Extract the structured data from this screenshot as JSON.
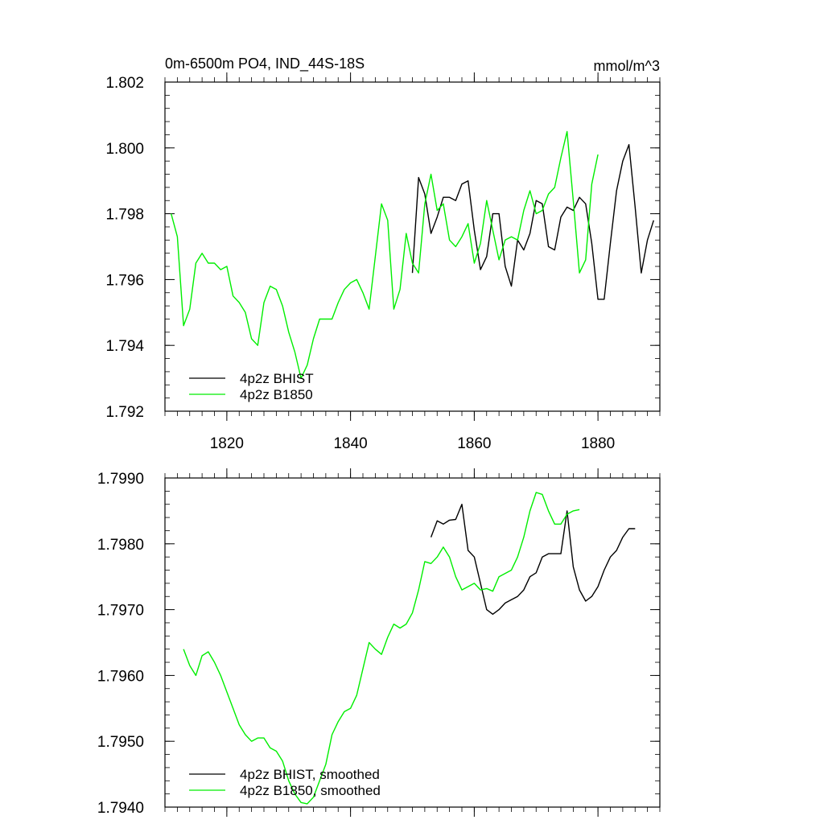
{
  "chart_data": [
    {
      "type": "line",
      "title": "0m-6500m PO4, IND_44S-18S",
      "units": "mmol/m^3",
      "xlim": [
        1810,
        1890
      ],
      "ylim": [
        1.792,
        1.802
      ],
      "xticks": [
        1820,
        1840,
        1860,
        1880
      ],
      "xtick_labels": [
        "1820",
        "1840",
        "1860",
        "1880"
      ],
      "yticks": [
        1.792,
        1.794,
        1.796,
        1.798,
        1.8,
        1.802
      ],
      "ytick_labels": [
        "1.792",
        "1.794",
        "1.796",
        "1.798",
        "1.800",
        "1.802"
      ],
      "legend_position": "bottom-left",
      "series": [
        {
          "name": "4p2z BHIST",
          "color": "#000000",
          "x": [
            1850,
            1851,
            1852,
            1853,
            1854,
            1855,
            1856,
            1857,
            1858,
            1859,
            1860,
            1861,
            1862,
            1863,
            1864,
            1865,
            1866,
            1867,
            1868,
            1869,
            1870,
            1871,
            1872,
            1873,
            1874,
            1875,
            1876,
            1877,
            1878,
            1879,
            1880,
            1881,
            1882,
            1883,
            1884,
            1885,
            1886,
            1887,
            1888,
            1889
          ],
          "values": [
            1.7962,
            1.7991,
            1.7986,
            1.7974,
            1.7979,
            1.7985,
            1.7985,
            1.7984,
            1.7989,
            1.799,
            1.7975,
            1.7963,
            1.7967,
            1.798,
            1.798,
            1.7964,
            1.7958,
            1.7972,
            1.7969,
            1.7974,
            1.7984,
            1.7983,
            1.797,
            1.7969,
            1.7979,
            1.7982,
            1.7981,
            1.7985,
            1.7983,
            1.7971,
            1.7954,
            1.7954,
            1.7971,
            1.7987,
            1.7996,
            1.8001,
            1.7982,
            1.7962,
            1.7972,
            1.7978
          ]
        },
        {
          "name": "4p2z B1850",
          "color": "#00ee00",
          "x": [
            1811,
            1812,
            1813,
            1814,
            1815,
            1816,
            1817,
            1818,
            1819,
            1820,
            1821,
            1822,
            1823,
            1824,
            1825,
            1826,
            1827,
            1828,
            1829,
            1830,
            1831,
            1832,
            1833,
            1834,
            1835,
            1836,
            1837,
            1838,
            1839,
            1840,
            1841,
            1842,
            1843,
            1844,
            1845,
            1846,
            1847,
            1848,
            1849,
            1850,
            1851,
            1852,
            1853,
            1854,
            1855,
            1856,
            1857,
            1858,
            1859,
            1860,
            1861,
            1862,
            1863,
            1864,
            1865,
            1866,
            1867,
            1868,
            1869,
            1870,
            1871,
            1872,
            1873,
            1874,
            1875,
            1876,
            1877,
            1878,
            1879,
            1880
          ],
          "values": [
            1.798,
            1.7973,
            1.7946,
            1.7951,
            1.7965,
            1.7968,
            1.7965,
            1.7965,
            1.7963,
            1.7964,
            1.7955,
            1.7953,
            1.795,
            1.7942,
            1.794,
            1.7953,
            1.7958,
            1.7957,
            1.7952,
            1.7944,
            1.7938,
            1.793,
            1.7934,
            1.7942,
            1.7948,
            1.7948,
            1.7948,
            1.7953,
            1.7957,
            1.7959,
            1.796,
            1.7956,
            1.7951,
            1.7967,
            1.7983,
            1.7978,
            1.7951,
            1.7957,
            1.7974,
            1.7965,
            1.7962,
            1.7983,
            1.7992,
            1.7981,
            1.7983,
            1.7972,
            1.797,
            1.7973,
            1.7977,
            1.7965,
            1.7971,
            1.7984,
            1.7975,
            1.7966,
            1.7972,
            1.7973,
            1.7972,
            1.7981,
            1.7987,
            1.798,
            1.7981,
            1.7986,
            1.7988,
            1.7997,
            1.8005,
            1.7984,
            1.7962,
            1.7966,
            1.7989,
            1.7998
          ]
        }
      ]
    },
    {
      "type": "line",
      "title": "",
      "xlim": [
        1810,
        1890
      ],
      "ylim": [
        1.794,
        1.799
      ],
      "xticks": [
        1820,
        1840,
        1860,
        1880
      ],
      "yticks": [
        1.794,
        1.795,
        1.796,
        1.797,
        1.798,
        1.799
      ],
      "ytick_labels": [
        "1.7940",
        "1.7950",
        "1.7960",
        "1.7970",
        "1.7980",
        "1.7990"
      ],
      "legend_position": "bottom-left",
      "series": [
        {
          "name": "4p2z BHIST, smoothed",
          "color": "#000000",
          "x": [
            1853,
            1854,
            1855,
            1856,
            1857,
            1858,
            1859,
            1860,
            1861,
            1862,
            1863,
            1864,
            1865,
            1866,
            1867,
            1868,
            1869,
            1870,
            1871,
            1872,
            1873,
            1874,
            1875,
            1876,
            1877,
            1878,
            1879,
            1880,
            1881,
            1882,
            1883,
            1884,
            1885,
            1886
          ],
          "values": [
            1.7981,
            1.79835,
            1.7983,
            1.79836,
            1.79837,
            1.7986,
            1.7979,
            1.7978,
            1.7974,
            1.797,
            1.79693,
            1.797,
            1.7971,
            1.79715,
            1.7972,
            1.7973,
            1.7975,
            1.79756,
            1.7978,
            1.79785,
            1.79785,
            1.79785,
            1.7985,
            1.79765,
            1.7973,
            1.79713,
            1.7972,
            1.79735,
            1.7976,
            1.7978,
            1.7979,
            1.7981,
            1.79823,
            1.79823
          ]
        },
        {
          "name": "4p2z B1850, smoothed",
          "color": "#00ee00",
          "x": [
            1813,
            1814,
            1815,
            1816,
            1817,
            1818,
            1819,
            1820,
            1821,
            1822,
            1823,
            1824,
            1825,
            1826,
            1827,
            1828,
            1829,
            1830,
            1831,
            1832,
            1833,
            1834,
            1835,
            1836,
            1837,
            1838,
            1839,
            1840,
            1841,
            1842,
            1843,
            1844,
            1845,
            1846,
            1847,
            1848,
            1849,
            1850,
            1851,
            1852,
            1853,
            1854,
            1855,
            1856,
            1857,
            1858,
            1859,
            1860,
            1861,
            1862,
            1863,
            1864,
            1865,
            1866,
            1867,
            1868,
            1869,
            1870,
            1871,
            1872,
            1873,
            1874,
            1875,
            1876,
            1877
          ],
          "values": [
            1.7964,
            1.79615,
            1.796,
            1.7963,
            1.79636,
            1.7962,
            1.796,
            1.79575,
            1.7955,
            1.79525,
            1.7951,
            1.795,
            1.79505,
            1.79505,
            1.7949,
            1.79485,
            1.7947,
            1.7944,
            1.7942,
            1.79407,
            1.79405,
            1.79415,
            1.7944,
            1.79465,
            1.7951,
            1.7953,
            1.79545,
            1.7955,
            1.7957,
            1.7961,
            1.7965,
            1.7964,
            1.79632,
            1.79658,
            1.79678,
            1.79672,
            1.79678,
            1.79695,
            1.7973,
            1.79773,
            1.7977,
            1.7978,
            1.79795,
            1.7978,
            1.7975,
            1.7973,
            1.79735,
            1.7974,
            1.7973,
            1.79732,
            1.79728,
            1.7975,
            1.79755,
            1.7976,
            1.7978,
            1.7981,
            1.7985,
            1.79878,
            1.79875,
            1.7985,
            1.7983,
            1.7983,
            1.79845,
            1.7985,
            1.79852
          ]
        }
      ]
    }
  ]
}
